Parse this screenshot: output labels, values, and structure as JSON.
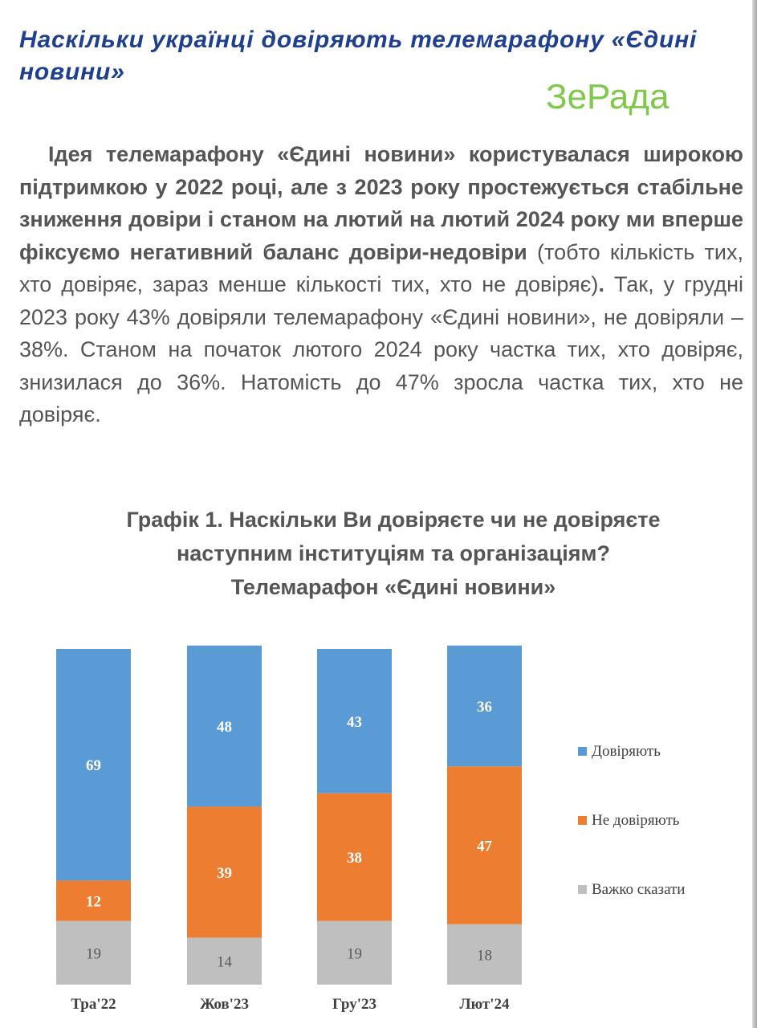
{
  "headline": "Наскільки українці довіряють телемарафону «Єдині новини»",
  "watermark": "ЗеРада",
  "paragraph": {
    "bold_lead": "Ідея телемарафону «Єдині новини» користувалася широкою підтримкою у 2022 році, але з 2023 року простежується стабільне зниження довіри і станом на лютий на лютий 2024 року ми вперше фіксуємо негативний баланс довіри-недовіри",
    "rest_1": " (тобто кількість тих, хто довіряє, зараз менше кількості тих, хто не довіряє)",
    "rest_dot": ".",
    "rest_2": " Так, у грудні 2023 року 43% довіряли телемарафону «Єдині новини», не довіряли – 38%. Станом на початок лютого 2024 року частка тих, хто довіряє, знизилася до 36%. Натомість до 47% зросла частка тих, хто не довіряє."
  },
  "chart_title": {
    "line1": "Графік 1. Наскільки Ви довіряєте чи не довіряєте",
    "line2": "наступним інституціям та організаціям?",
    "line3": "Телемарафон «Єдині новини»"
  },
  "colors": {
    "trust": "#5b9bd5",
    "distrust": "#ed7d31",
    "hard": "#bfbfbf"
  },
  "chart_data": {
    "type": "bar",
    "stacked": true,
    "percent": true,
    "categories": [
      "Тра'22",
      "Жов'23",
      "Гру'23",
      "Лют'24"
    ],
    "series": [
      {
        "name": "Важко сказати",
        "key": "hard",
        "values": [
          19,
          14,
          19,
          18
        ]
      },
      {
        "name": "Не довіряють",
        "key": "distrust",
        "values": [
          12,
          39,
          38,
          47
        ]
      },
      {
        "name": "Довіряють",
        "key": "trust",
        "values": [
          69,
          48,
          43,
          36
        ]
      }
    ],
    "legend": [
      "Довіряють",
      "Не довіряють",
      "Важко сказати"
    ],
    "legend_position": "right",
    "ylim": [
      0,
      100
    ],
    "grid": false
  }
}
